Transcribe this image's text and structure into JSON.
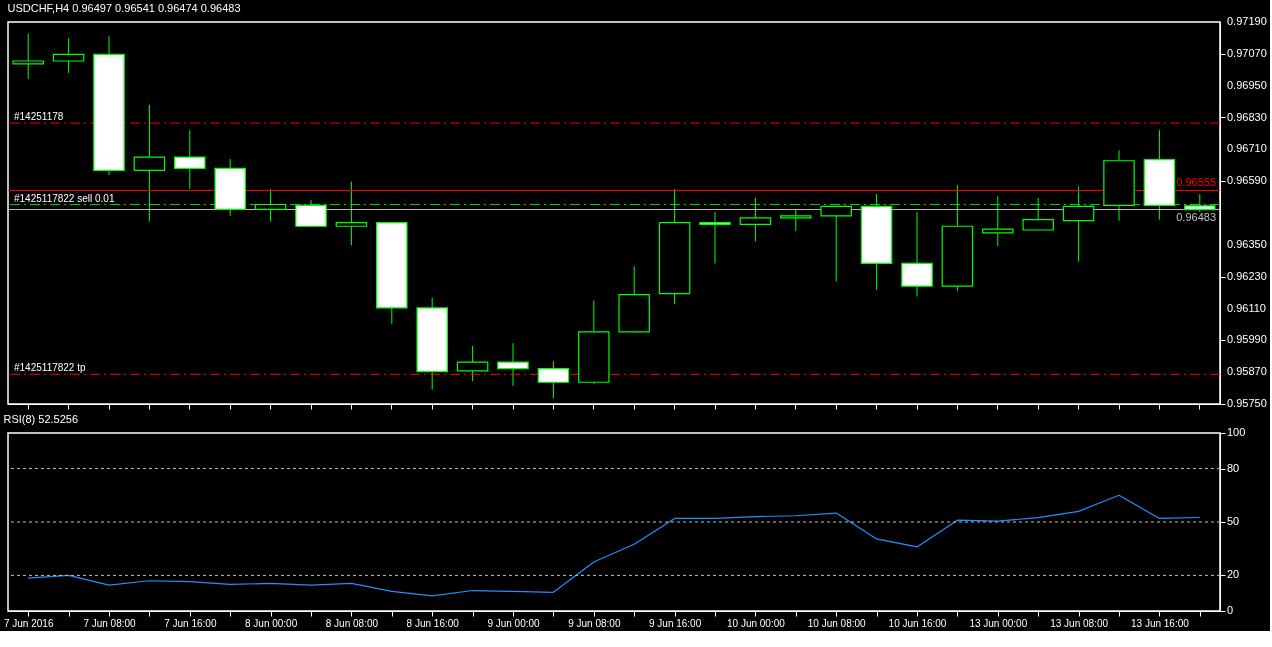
{
  "chart_data": [
    {
      "type": "candlestick",
      "title": "USDCHF,H4  0.96497 0.96541 0.96474 0.96483",
      "categories": [
        null,
        null,
        null,
        null,
        null,
        null,
        null,
        null,
        null,
        null,
        null,
        null,
        null,
        null,
        null,
        null,
        null,
        null,
        null,
        null,
        null,
        null,
        null,
        null,
        null,
        null,
        null,
        null,
        null,
        null
      ],
      "ohlc": [
        [
          0.97032,
          0.97147,
          0.96975,
          0.97043
        ],
        [
          0.97043,
          0.97129,
          0.96997,
          0.97068
        ],
        [
          0.97068,
          0.97136,
          0.96613,
          0.96631
        ],
        [
          0.96631,
          0.96878,
          0.96438,
          0.96681
        ],
        [
          0.96681,
          0.96782,
          0.9656,
          0.96638
        ],
        [
          0.96638,
          0.96674,
          0.96459,
          0.96484
        ],
        [
          0.96484,
          0.9656,
          0.96438,
          0.96502
        ],
        [
          0.96499,
          0.9652,
          0.9642,
          0.9642
        ],
        [
          0.9642,
          0.96588,
          0.96348,
          0.96434
        ],
        [
          0.96434,
          0.96434,
          0.96051,
          0.96112
        ],
        [
          0.96112,
          0.96151,
          0.95804,
          0.95872
        ],
        [
          0.95875,
          0.95969,
          0.95836,
          0.95908
        ],
        [
          0.95908,
          0.95979,
          0.95818,
          0.95883
        ],
        [
          0.95883,
          0.95911,
          0.95772,
          0.95832
        ],
        [
          0.95832,
          0.9614,
          0.95825,
          0.96022
        ],
        [
          0.96022,
          0.96269,
          0.96019,
          0.96162
        ],
        [
          0.96166,
          0.9656,
          0.96126,
          0.96434
        ],
        [
          0.96434,
          0.96474,
          0.9628,
          0.96427
        ],
        [
          0.96427,
          0.96527,
          0.96363,
          0.96452
        ],
        [
          0.96452,
          0.96481,
          0.96402,
          0.96459
        ],
        [
          0.96459,
          0.96495,
          0.96212,
          0.96495
        ],
        [
          0.96495,
          0.96542,
          0.9618,
          0.9628
        ],
        [
          0.9628,
          0.96474,
          0.96155,
          0.96194
        ],
        [
          0.96194,
          0.96574,
          0.96176,
          0.9642
        ],
        [
          0.96395,
          0.96534,
          0.96345,
          0.96409
        ],
        [
          0.96406,
          0.96527,
          0.96406,
          0.96445
        ],
        [
          0.96441,
          0.9657,
          0.96287,
          0.96495
        ],
        [
          0.96499,
          0.96706,
          0.96441,
          0.96667
        ],
        [
          0.96671,
          0.96782,
          0.96445,
          0.96499
        ],
        [
          0.96497,
          0.96541,
          0.96474,
          0.96483
        ]
      ],
      "ylim": [
        0.9575,
        0.9719
      ],
      "yticks": [
        {
          "value": 0.9575,
          "label": "0.95750"
        },
        {
          "value": 0.9587,
          "label": "0.95870"
        },
        {
          "value": 0.9599,
          "label": "0.95990"
        },
        {
          "value": 0.9611,
          "label": "0.96110"
        },
        {
          "value": 0.9623,
          "label": "0.96230"
        },
        {
          "value": 0.9635,
          "label": "0.96350"
        },
        {
          "value": 0.9659,
          "label": "0.96590"
        },
        {
          "value": 0.9671,
          "label": "0.96710"
        },
        {
          "value": 0.9683,
          "label": "0.96830"
        },
        {
          "value": 0.9695,
          "label": "0.96950"
        },
        {
          "value": 0.9707,
          "label": "0.97070"
        },
        {
          "value": 0.9719,
          "label": "0.97190"
        }
      ],
      "annotations": [
        {
          "text": "#14251178",
          "y": 0.96809
        }
      ],
      "ref_lines": [
        {
          "axis": "y",
          "value": 0.96809,
          "color": "#ff0000",
          "line_style": "dashed"
        },
        {
          "axis": "y",
          "value": 0.96502,
          "label": "#1425117822 sell 0.01",
          "color": "#00cc00",
          "line_style": "dashed"
        },
        {
          "axis": "y",
          "value": 0.95862,
          "label": "#1425117822 tp",
          "color": "#ff0000",
          "line_style": "dashed"
        },
        {
          "axis": "y",
          "value": 0.96555,
          "label": "0.96555",
          "color": "#ff0000",
          "line_style": "solid"
        },
        {
          "axis": "y",
          "value": 0.96483,
          "label": "0.96483",
          "color": "#c0c0c0",
          "line_style": "solid"
        }
      ],
      "tick_labels": "y",
      "grid": false
    },
    {
      "type": "line",
      "title": "RSI(8) 52.5256",
      "categories": [
        "7 Jun 2016",
        null,
        "7 Jun 08:00",
        null,
        "7 Jun 16:00",
        null,
        "8 Jun 00:00",
        null,
        "8 Jun 08:00",
        null,
        "8 Jun 16:00",
        null,
        "9 Jun 00:00",
        null,
        "9 Jun 08:00",
        null,
        "9 Jun 16:00",
        null,
        "10 Jun 00:00",
        null,
        "10 Jun 08:00",
        null,
        "10 Jun 16:00",
        null,
        "13 Jun 00:00",
        null,
        "13 Jun 08:00",
        null,
        "13 Jun 16:00",
        null
      ],
      "series": [
        {
          "color": "#1e90ff",
          "values": [
            18.5,
            20,
            14.5,
            17,
            16.5,
            15,
            15.5,
            14.5,
            15.5,
            11,
            8.5,
            11.5,
            11,
            10.5,
            27.5,
            37.5,
            52,
            52,
            53,
            53.5,
            55,
            40.5,
            36,
            51,
            50.5,
            52.5,
            56,
            65,
            52,
            52.5256
          ]
        }
      ],
      "ylim": [
        0,
        100
      ],
      "yticks": [
        0,
        20,
        50,
        80,
        100
      ],
      "ref_lines": [
        {
          "axis": "y",
          "value": 20,
          "color": "#c0c0c0",
          "line_style": "dotted"
        },
        {
          "axis": "y",
          "value": 50,
          "color": "#c0c0c0",
          "line_style": "dotted"
        },
        {
          "axis": "y",
          "value": 80,
          "color": "#c0c0c0",
          "line_style": "dotted"
        }
      ],
      "grid": false
    }
  ]
}
